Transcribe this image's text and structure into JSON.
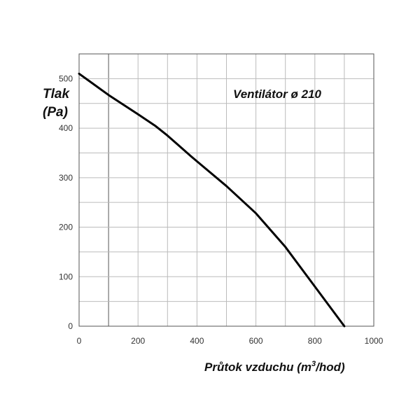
{
  "chart_data": {
    "type": "line",
    "title": "Ventilátor ø 210",
    "ylabel_line1": "Tlak",
    "ylabel_line2": "(Pa)",
    "xlabel_prefix": "Průtok vzduchu (m",
    "xlabel_sup": "3",
    "xlabel_suffix": "/hod)",
    "xlim": [
      0,
      1000
    ],
    "ylim": [
      0,
      550
    ],
    "x_ticks": [
      0,
      200,
      400,
      600,
      800,
      1000
    ],
    "y_ticks": [
      0,
      100,
      200,
      300,
      400,
      500
    ],
    "x_gridlines": [
      0,
      100,
      200,
      300,
      400,
      500,
      600,
      700,
      800,
      900,
      1000
    ],
    "y_gridlines": [
      0,
      50,
      100,
      150,
      200,
      250,
      300,
      350,
      400,
      450,
      500,
      550
    ],
    "grid": true,
    "series": [
      {
        "color": "#000000",
        "x": [
          0,
          100,
          200,
          260,
          300,
          380,
          400,
          500,
          600,
          700,
          800,
          900
        ],
        "y": [
          510,
          467,
          428,
          404,
          385,
          343,
          333,
          283,
          228,
          160,
          80,
          0
        ]
      }
    ]
  }
}
